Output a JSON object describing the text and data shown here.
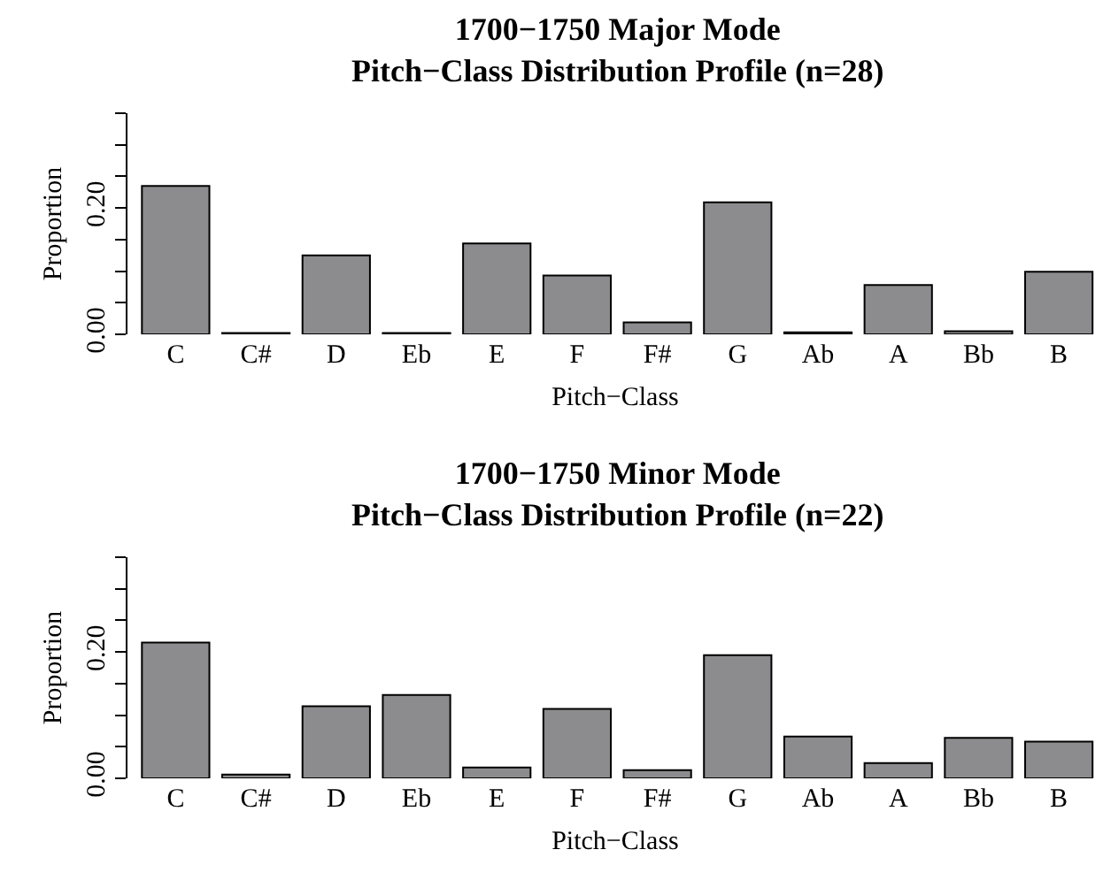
{
  "chart_data": [
    {
      "type": "bar",
      "title": "1700−1750 Major Mode\nPitch−Class Distribution Profile (n=28)",
      "xlabel": "Pitch−Class",
      "ylabel": "Proportion",
      "categories": [
        "C",
        "C#",
        "D",
        "Eb",
        "E",
        "F",
        "F#",
        "G",
        "Ab",
        "A",
        "Bb",
        "B"
      ],
      "values": [
        0.235,
        0.002,
        0.125,
        0.002,
        0.144,
        0.093,
        0.019,
        0.209,
        0.003,
        0.078,
        0.005,
        0.099
      ],
      "color": "#8c8c8f",
      "ylim": [
        0,
        0.35
      ],
      "yticks": [
        {
          "value": 0,
          "label": "0.00"
        },
        {
          "value": 0.05,
          "label": null
        },
        {
          "value": 0.1,
          "label": null
        },
        {
          "value": 0.15,
          "label": null
        },
        {
          "value": 0.2,
          "label": "0.20"
        },
        {
          "value": 0.25,
          "label": null
        },
        {
          "value": 0.3,
          "label": null
        },
        {
          "value": 0.35,
          "label": null
        }
      ],
      "grid": false,
      "legend": false
    },
    {
      "type": "bar",
      "title": "1700−1750 Minor Mode\nPitch−Class Distribution Profile (n=22)",
      "xlabel": "Pitch−Class",
      "ylabel": "Proportion",
      "categories": [
        "C",
        "C#",
        "D",
        "Eb",
        "E",
        "F",
        "F#",
        "G",
        "Ab",
        "A",
        "Bb",
        "B"
      ],
      "values": [
        0.215,
        0.006,
        0.114,
        0.132,
        0.017,
        0.11,
        0.013,
        0.195,
        0.066,
        0.024,
        0.064,
        0.058
      ],
      "color": "#8c8c8f",
      "ylim": [
        0,
        0.35
      ],
      "yticks": [
        {
          "value": 0,
          "label": "0.00"
        },
        {
          "value": 0.05,
          "label": null
        },
        {
          "value": 0.1,
          "label": null
        },
        {
          "value": 0.15,
          "label": null
        },
        {
          "value": 0.2,
          "label": "0.20"
        },
        {
          "value": 0.25,
          "label": null
        },
        {
          "value": 0.3,
          "label": null
        },
        {
          "value": 0.35,
          "label": null
        }
      ],
      "grid": false,
      "legend": false
    }
  ]
}
